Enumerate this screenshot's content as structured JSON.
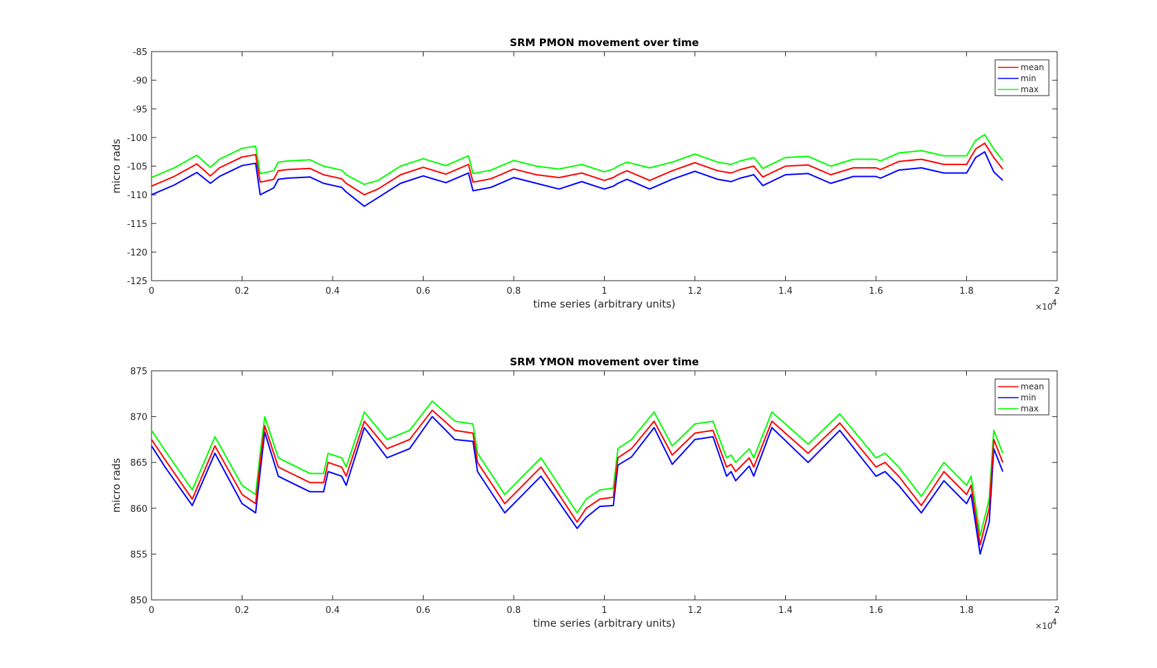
{
  "chart_data": [
    {
      "type": "line",
      "title": "SRM PMON movement over time",
      "xlabel": "time series (arbitrary units)",
      "ylabel": "micro rads",
      "xlim": [
        0,
        2
      ],
      "ylim": [
        -125,
        -85
      ],
      "x_multiplier_label": "×10",
      "x_multiplier_exponent": "4",
      "xticks": [
        "0",
        "0.2",
        "0.4",
        "0.6",
        "0.8",
        "1",
        "1.2",
        "1.4",
        "1.6",
        "1.8",
        "2"
      ],
      "yticks": [
        "-85",
        "-90",
        "-95",
        "-100",
        "-105",
        "-110",
        "-115",
        "-120",
        "-125"
      ],
      "legend": "top-right",
      "grid": false,
      "series_colors": {
        "mean": "#ff0000",
        "min": "#0000ff",
        "max": "#00ff00"
      },
      "x": [
        0,
        0.05,
        0.1,
        0.13,
        0.15,
        0.2,
        0.23,
        0.24,
        0.27,
        0.28,
        0.3,
        0.35,
        0.38,
        0.42,
        0.43,
        0.47,
        0.5,
        0.55,
        0.6,
        0.65,
        0.7,
        0.71,
        0.75,
        0.8,
        0.85,
        0.9,
        0.95,
        1.0,
        1.02,
        1.03,
        1.05,
        1.1,
        1.15,
        1.2,
        1.25,
        1.28,
        1.3,
        1.33,
        1.35,
        1.4,
        1.45,
        1.5,
        1.55,
        1.6,
        1.61,
        1.65,
        1.7,
        1.75,
        1.8,
        1.82,
        1.84,
        1.86,
        1.88
      ],
      "series": [
        {
          "name": "mean",
          "values": [
            -108.5,
            -106.8,
            -104.6,
            -106.7,
            -105.3,
            -103.4,
            -103.0,
            -107.8,
            -107.3,
            -105.8,
            -105.6,
            -105.4,
            -106.5,
            -107.2,
            -108.0,
            -110.0,
            -109.0,
            -106.5,
            -105.2,
            -106.4,
            -104.7,
            -107.8,
            -107.2,
            -105.5,
            -106.5,
            -107.0,
            -106.2,
            -107.5,
            -107.0,
            -106.5,
            -105.8,
            -107.5,
            -105.8,
            -104.4,
            -105.8,
            -106.2,
            -105.6,
            -105.0,
            -106.9,
            -105.0,
            -104.8,
            -106.5,
            -105.3,
            -105.3,
            -105.6,
            -104.2,
            -103.8,
            -104.7,
            -104.7,
            -102.0,
            -101.0,
            -103.5,
            -105.5
          ]
        },
        {
          "name": "min",
          "values": [
            -110.0,
            -108.3,
            -106.1,
            -108.0,
            -106.8,
            -104.9,
            -104.5,
            -110.0,
            -108.8,
            -107.3,
            -107.1,
            -106.9,
            -108.0,
            -108.7,
            -109.5,
            -112.0,
            -110.5,
            -108.0,
            -106.7,
            -107.9,
            -106.2,
            -109.3,
            -108.7,
            -107.0,
            -108.0,
            -109.0,
            -107.7,
            -109.0,
            -108.5,
            -108.0,
            -107.3,
            -109.0,
            -107.3,
            -105.9,
            -107.3,
            -107.7,
            -107.1,
            -106.5,
            -108.4,
            -106.5,
            -106.3,
            -108.0,
            -106.8,
            -106.8,
            -107.1,
            -105.7,
            -105.3,
            -106.2,
            -106.2,
            -103.5,
            -102.5,
            -106.0,
            -107.5
          ]
        },
        {
          "name": "max",
          "values": [
            -107.0,
            -105.3,
            -103.1,
            -105.2,
            -103.8,
            -101.9,
            -101.5,
            -106.3,
            -105.8,
            -104.3,
            -104.1,
            -103.9,
            -105.0,
            -105.7,
            -106.5,
            -108.2,
            -107.5,
            -105.0,
            -103.7,
            -104.9,
            -103.2,
            -106.3,
            -105.7,
            -104.0,
            -105.0,
            -105.5,
            -104.7,
            -106.0,
            -105.5,
            -105.0,
            -104.3,
            -105.3,
            -104.3,
            -102.9,
            -104.3,
            -104.7,
            -104.1,
            -103.5,
            -105.4,
            -103.5,
            -103.3,
            -105.0,
            -103.8,
            -103.8,
            -104.1,
            -102.7,
            -102.3,
            -103.2,
            -103.2,
            -100.5,
            -99.5,
            -102.0,
            -104.0
          ]
        }
      ]
    },
    {
      "type": "line",
      "title": "SRM YMON movement over time",
      "xlabel": "time series (arbitrary units)",
      "ylabel": "micro rads",
      "xlim": [
        0,
        2
      ],
      "ylim": [
        850,
        875
      ],
      "x_multiplier_label": "×10",
      "x_multiplier_exponent": "4",
      "xticks": [
        "0",
        "0.2",
        "0.4",
        "0.6",
        "0.8",
        "1",
        "1.2",
        "1.4",
        "1.6",
        "1.8",
        "2"
      ],
      "yticks": [
        "875",
        "870",
        "865",
        "860",
        "855",
        "850"
      ],
      "legend": "top-right",
      "grid": false,
      "series_colors": {
        "mean": "#ff0000",
        "min": "#0000ff",
        "max": "#00ff00"
      },
      "x": [
        0,
        0.03,
        0.09,
        0.14,
        0.2,
        0.23,
        0.24,
        0.25,
        0.28,
        0.3,
        0.35,
        0.38,
        0.39,
        0.42,
        0.43,
        0.47,
        0.52,
        0.57,
        0.62,
        0.67,
        0.71,
        0.72,
        0.78,
        0.86,
        0.94,
        0.96,
        0.99,
        1.02,
        1.03,
        1.06,
        1.11,
        1.15,
        1.2,
        1.24,
        1.27,
        1.28,
        1.29,
        1.32,
        1.33,
        1.37,
        1.45,
        1.52,
        1.6,
        1.62,
        1.65,
        1.7,
        1.75,
        1.8,
        1.81,
        1.83,
        1.85,
        1.86,
        1.88
      ],
      "series": [
        {
          "name": "mean",
          "values": [
            867.5,
            865.3,
            861.0,
            866.8,
            861.5,
            860.5,
            865.0,
            869.0,
            864.5,
            864.0,
            862.8,
            862.8,
            865.0,
            864.5,
            863.5,
            869.5,
            866.5,
            867.5,
            870.7,
            868.5,
            868.2,
            865.0,
            860.5,
            864.5,
            858.5,
            860.0,
            861.0,
            861.2,
            865.5,
            866.5,
            869.5,
            865.8,
            868.2,
            868.5,
            864.5,
            864.8,
            864.0,
            865.5,
            864.5,
            869.5,
            866.0,
            869.3,
            864.5,
            865.0,
            863.5,
            860.3,
            864.0,
            861.5,
            862.5,
            856.0,
            860.0,
            867.5,
            865.0
          ]
        },
        {
          "name": "min",
          "values": [
            866.8,
            864.5,
            860.3,
            866.0,
            860.5,
            859.5,
            864.0,
            868.3,
            863.5,
            863.0,
            861.8,
            861.8,
            864.0,
            863.5,
            862.5,
            868.8,
            865.5,
            866.5,
            870.0,
            867.5,
            867.3,
            864.0,
            859.5,
            863.5,
            857.8,
            859.0,
            860.2,
            860.3,
            864.7,
            865.6,
            868.8,
            864.8,
            867.5,
            867.8,
            863.5,
            864.0,
            863.0,
            864.6,
            863.5,
            868.8,
            865.0,
            868.5,
            863.5,
            864.0,
            862.5,
            859.5,
            863.0,
            860.5,
            861.5,
            855.0,
            858.5,
            866.5,
            864.0
          ]
        },
        {
          "name": "max",
          "values": [
            868.5,
            866.3,
            862.0,
            867.8,
            862.5,
            861.5,
            866.0,
            870.0,
            865.5,
            865.0,
            863.8,
            863.8,
            866.0,
            865.5,
            864.5,
            870.5,
            867.5,
            868.5,
            871.7,
            869.5,
            869.2,
            866.0,
            861.5,
            865.5,
            859.5,
            861.0,
            862.0,
            862.2,
            866.5,
            867.5,
            870.5,
            866.8,
            869.2,
            869.5,
            865.5,
            865.8,
            865.0,
            866.5,
            865.5,
            870.5,
            867.0,
            870.3,
            865.5,
            866.0,
            864.5,
            861.3,
            865.0,
            862.5,
            863.5,
            857.0,
            861.0,
            868.5,
            866.0
          ]
        }
      ]
    }
  ]
}
